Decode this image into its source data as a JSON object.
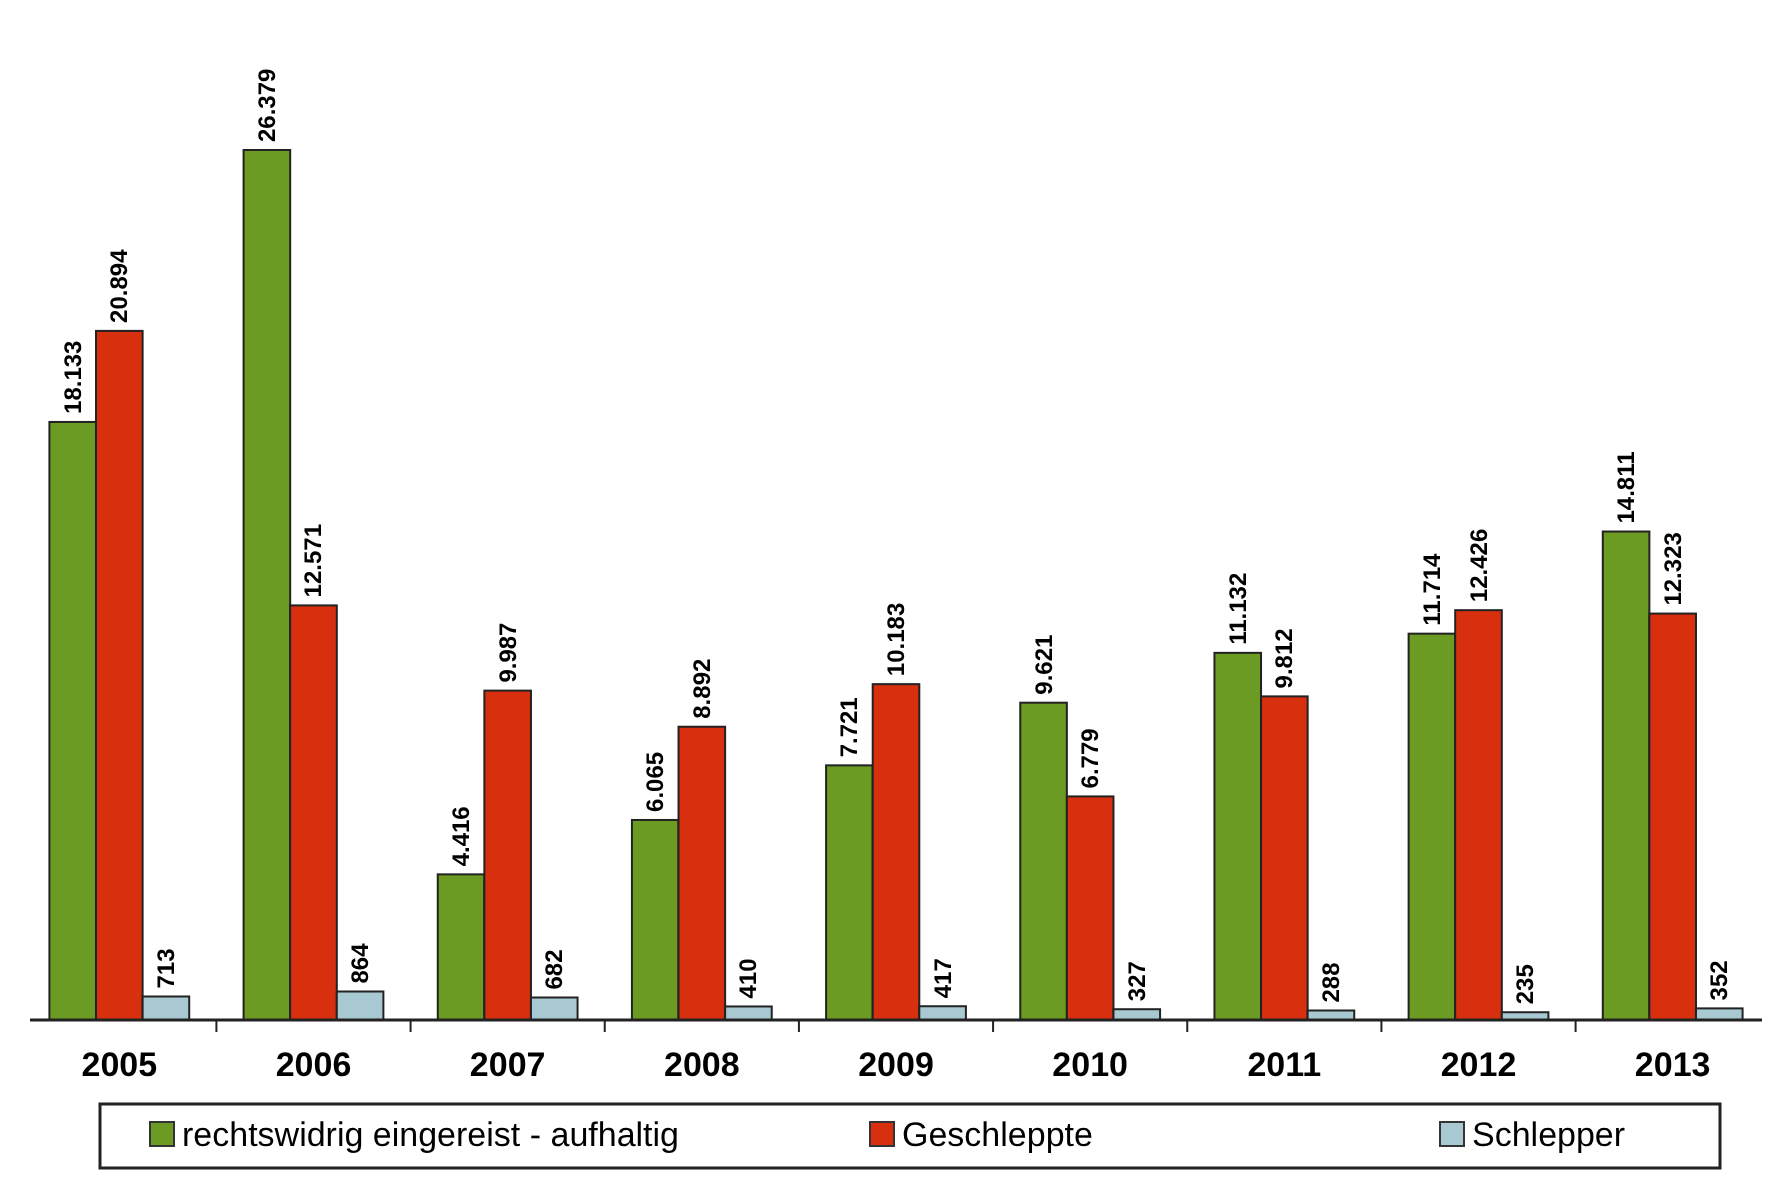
{
  "chart_data": {
    "type": "bar",
    "categories": [
      "2005",
      "2006",
      "2007",
      "2008",
      "2009",
      "2010",
      "2011",
      "2012",
      "2013"
    ],
    "series": [
      {
        "name": "rechtswidrig eingereist - aufhaltig",
        "color": "#6b9b22",
        "values": [
          18133,
          26379,
          4416,
          6065,
          7721,
          9621,
          11132,
          11714,
          14811
        ],
        "value_labels": [
          "18.133",
          "26.379",
          "4.416",
          "6.065",
          "7.721",
          "9.621",
          "11.132",
          "11.714",
          "14.811"
        ]
      },
      {
        "name": "Geschleppte",
        "color": "#d8300f",
        "values": [
          20894,
          12571,
          9987,
          8892,
          10183,
          6779,
          9812,
          12426,
          12323
        ],
        "value_labels": [
          "20.894",
          "12.571",
          "9.987",
          "8.892",
          "10.183",
          "6.779",
          "9.812",
          "12.426",
          "12.323"
        ]
      },
      {
        "name": "Schlepper",
        "color": "#a9c9d2",
        "values": [
          713,
          864,
          682,
          410,
          417,
          327,
          288,
          235,
          352
        ],
        "value_labels": [
          "713",
          "864",
          "682",
          "410",
          "417",
          "327",
          "288",
          "235",
          "352"
        ]
      }
    ],
    "legend": "bottom"
  }
}
